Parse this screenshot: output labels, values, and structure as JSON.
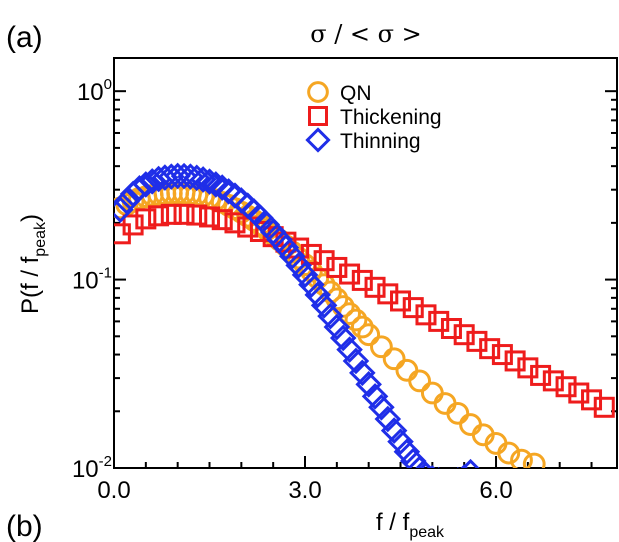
{
  "panel_labels": {
    "top": "(a)",
    "bottom": "(b)"
  },
  "chart_data": {
    "type": "scatter",
    "title": "σ / < σ >",
    "xlabel": {
      "base": "f / f",
      "sub": "peak"
    },
    "ylabel": {
      "base": "P(f / f",
      "sub": "peak",
      "close": ")"
    },
    "x_ticks": [
      {
        "value": 0,
        "label": "0.0"
      },
      {
        "value": 3,
        "label": "3.0"
      },
      {
        "value": 6,
        "label": "6.0"
      }
    ],
    "y_ticks": [
      {
        "value": 1,
        "base": "10",
        "exp": "0"
      },
      {
        "value": 0.1,
        "base": "10",
        "exp": "-1"
      },
      {
        "value": 0.01,
        "base": "10",
        "exp": "-2"
      }
    ],
    "xlim": [
      0,
      7.9
    ],
    "ylim": [
      0.01,
      1.5
    ],
    "y_scale": "log",
    "grid": false,
    "legend_position": "top-center",
    "series": [
      {
        "name": "QN",
        "marker": "circle",
        "color": "#f5a623",
        "x": [
          0.1,
          0.2,
          0.3,
          0.4,
          0.5,
          0.6,
          0.7,
          0.8,
          0.9,
          1.0,
          1.1,
          1.2,
          1.3,
          1.4,
          1.5,
          1.6,
          1.7,
          1.8,
          1.9,
          2.0,
          2.1,
          2.2,
          2.3,
          2.4,
          2.5,
          2.6,
          2.7,
          2.8,
          2.9,
          3.0,
          3.1,
          3.2,
          3.3,
          3.4,
          3.5,
          3.6,
          3.7,
          3.8,
          3.9,
          4.0,
          4.2,
          4.4,
          4.6,
          4.8,
          5.0,
          5.2,
          5.4,
          5.6,
          5.8,
          6.0,
          6.2,
          6.4,
          6.6
        ],
        "y": [
          0.24,
          0.25,
          0.26,
          0.27,
          0.275,
          0.28,
          0.283,
          0.285,
          0.287,
          0.288,
          0.287,
          0.285,
          0.282,
          0.278,
          0.272,
          0.265,
          0.257,
          0.248,
          0.238,
          0.228,
          0.217,
          0.206,
          0.195,
          0.184,
          0.173,
          0.162,
          0.151,
          0.14,
          0.13,
          0.12,
          0.111,
          0.102,
          0.094,
          0.086,
          0.079,
          0.072,
          0.066,
          0.061,
          0.056,
          0.051,
          0.044,
          0.038,
          0.033,
          0.029,
          0.025,
          0.022,
          0.0195,
          0.017,
          0.015,
          0.0135,
          0.012,
          0.011,
          0.0105
        ]
      },
      {
        "name": "Thickening",
        "marker": "square",
        "color": "#ee1c1c",
        "x": [
          0.1,
          0.3,
          0.5,
          0.7,
          0.9,
          1.1,
          1.3,
          1.5,
          1.7,
          1.9,
          2.1,
          2.3,
          2.5,
          2.7,
          2.9,
          3.1,
          3.3,
          3.5,
          3.7,
          3.9,
          4.1,
          4.3,
          4.5,
          4.7,
          4.9,
          5.1,
          5.3,
          5.5,
          5.7,
          5.9,
          6.1,
          6.3,
          6.5,
          6.7,
          6.9,
          7.1,
          7.3,
          7.5,
          7.7
        ],
        "y": [
          0.175,
          0.195,
          0.21,
          0.218,
          0.222,
          0.222,
          0.22,
          0.215,
          0.208,
          0.2,
          0.19,
          0.18,
          0.169,
          0.158,
          0.147,
          0.136,
          0.126,
          0.116,
          0.107,
          0.099,
          0.091,
          0.084,
          0.077,
          0.071,
          0.065,
          0.06,
          0.055,
          0.051,
          0.047,
          0.043,
          0.04,
          0.037,
          0.034,
          0.031,
          0.029,
          0.027,
          0.025,
          0.023,
          0.021
        ]
      },
      {
        "name": "Thinning",
        "marker": "diamond",
        "color": "#1f2ee8",
        "x": [
          0.1,
          0.2,
          0.3,
          0.4,
          0.5,
          0.6,
          0.7,
          0.8,
          0.9,
          1.0,
          1.1,
          1.2,
          1.3,
          1.4,
          1.5,
          1.6,
          1.7,
          1.8,
          1.9,
          2.0,
          2.1,
          2.2,
          2.3,
          2.4,
          2.5,
          2.6,
          2.7,
          2.8,
          2.9,
          3.0,
          3.1,
          3.2,
          3.3,
          3.4,
          3.5,
          3.6,
          3.7,
          3.8,
          3.9,
          4.0,
          4.1,
          4.2,
          4.3,
          4.4,
          4.5,
          4.6,
          4.7,
          4.8,
          4.9,
          5.0,
          5.1,
          5.2,
          5.3,
          5.4,
          5.5,
          5.6
        ],
        "y": [
          0.235,
          0.26,
          0.285,
          0.305,
          0.32,
          0.332,
          0.342,
          0.348,
          0.352,
          0.355,
          0.354,
          0.352,
          0.347,
          0.34,
          0.331,
          0.32,
          0.308,
          0.294,
          0.279,
          0.263,
          0.247,
          0.23,
          0.213,
          0.196,
          0.179,
          0.163,
          0.148,
          0.133,
          0.119,
          0.106,
          0.094,
          0.083,
          0.073,
          0.064,
          0.056,
          0.049,
          0.0425,
          0.037,
          0.032,
          0.0278,
          0.024,
          0.021,
          0.0182,
          0.0158,
          0.0138,
          0.0122,
          0.0109,
          0.0099,
          0.0092,
          0.0088,
          0.0086,
          0.0085,
          0.0085,
          0.0086,
          0.0089,
          0.0095
        ]
      }
    ]
  }
}
